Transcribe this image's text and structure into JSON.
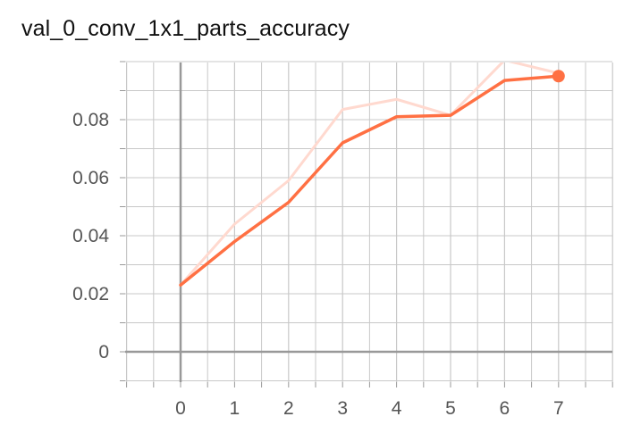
{
  "title": "val_0_conv_1x1_parts_accuracy",
  "colors": {
    "smoothed": "#ff7043",
    "raw": "#ffd9cf",
    "grid": "#c8c8c8",
    "axis": "#999999"
  },
  "chart_data": {
    "type": "line",
    "title": "val_0_conv_1x1_parts_accuracy",
    "xlabel": "",
    "ylabel": "",
    "x_ticks": [
      0,
      1,
      2,
      3,
      4,
      5,
      6,
      7
    ],
    "y_ticks": [
      0,
      0.02,
      0.04,
      0.06,
      0.08
    ],
    "y_tick_labels": [
      "0",
      "0.02",
      "0.04",
      "0.06",
      "0.08"
    ],
    "xlim": [
      -1,
      8
    ],
    "ylim": [
      -0.01,
      0.1
    ],
    "grid": true,
    "series": [
      {
        "role": "raw",
        "x": [
          0,
          1,
          2,
          3,
          4,
          5,
          6,
          7
        ],
        "values": [
          0.023,
          0.044,
          0.059,
          0.0835,
          0.087,
          0.0815,
          0.1005,
          0.096
        ]
      },
      {
        "role": "smoothed",
        "x": [
          0,
          1,
          2,
          3,
          4,
          5,
          6,
          7
        ],
        "values": [
          0.023,
          0.038,
          0.0515,
          0.072,
          0.081,
          0.0815,
          0.0935,
          0.095
        ]
      }
    ]
  }
}
